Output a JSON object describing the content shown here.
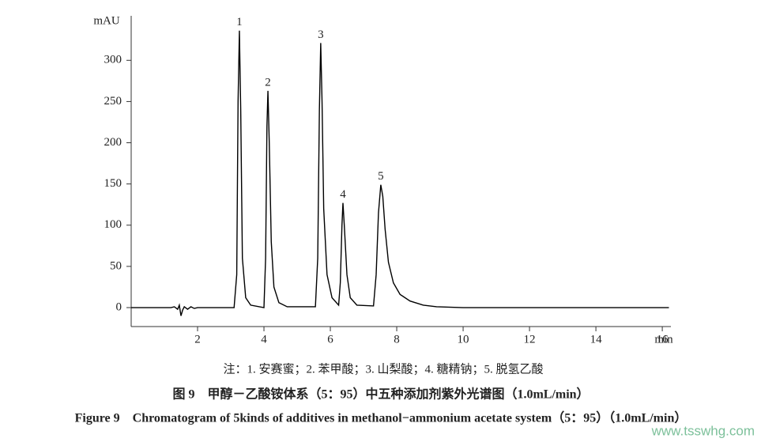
{
  "chart_data": {
    "type": "line",
    "y_label": "mAU",
    "x_label": "min",
    "note": "注：1. 安赛蜜；2. 苯甲酸；3. 山梨酸；4. 糖精钠；5. 脱氢乙酸",
    "title": "图 9　甲醇－乙酸铵体系（5：95）中五种添加剂紫外光谱图（1.0mL/min）",
    "subtitle": "Figure 9　Chromatogram of 5kinds of additives in methanol−ammonium acetate system（5：95）（1.0mL/min）",
    "watermark": "www.tsswhg.com",
    "annotations": [
      "1",
      "2",
      "3",
      "4",
      "5"
    ],
    "x": [
      0,
      1.2,
      1.3,
      1.4,
      1.45,
      1.5,
      1.55,
      1.6,
      1.7,
      1.8,
      1.9,
      2.0,
      3.1,
      3.18,
      3.22,
      3.26,
      3.3,
      3.35,
      3.45,
      3.6,
      4.0,
      4.05,
      4.09,
      4.12,
      4.16,
      4.22,
      4.3,
      4.45,
      4.7,
      5.55,
      5.62,
      5.67,
      5.71,
      5.75,
      5.8,
      5.9,
      6.05,
      6.25,
      6.3,
      6.35,
      6.38,
      6.42,
      6.5,
      6.6,
      6.8,
      7.3,
      7.38,
      7.45,
      7.52,
      7.58,
      7.65,
      7.75,
      7.9,
      8.1,
      8.4,
      8.8,
      9.2,
      10,
      12,
      14,
      16.2
    ],
    "series": [
      {
        "color": "#000000",
        "values": [
          0,
          0,
          1,
          -2,
          3,
          -10,
          -3,
          1,
          -2,
          1,
          -1,
          0,
          0,
          40,
          250,
          336,
          240,
          60,
          12,
          3,
          0,
          60,
          220,
          263,
          200,
          80,
          25,
          6,
          1,
          1,
          60,
          240,
          321,
          250,
          120,
          40,
          12,
          3,
          30,
          100,
          127,
          100,
          40,
          12,
          3,
          2,
          40,
          115,
          149,
          135,
          95,
          55,
          30,
          16,
          8,
          3,
          1,
          0,
          0,
          0,
          0
        ]
      }
    ],
    "xlim": [
      0,
      16.26
    ],
    "ylim": [
      -23,
      354
    ],
    "xticks": [
      2,
      4,
      6,
      8,
      10,
      12,
      14,
      16
    ],
    "yticks": [
      0,
      50,
      100,
      150,
      200,
      250,
      300
    ]
  }
}
